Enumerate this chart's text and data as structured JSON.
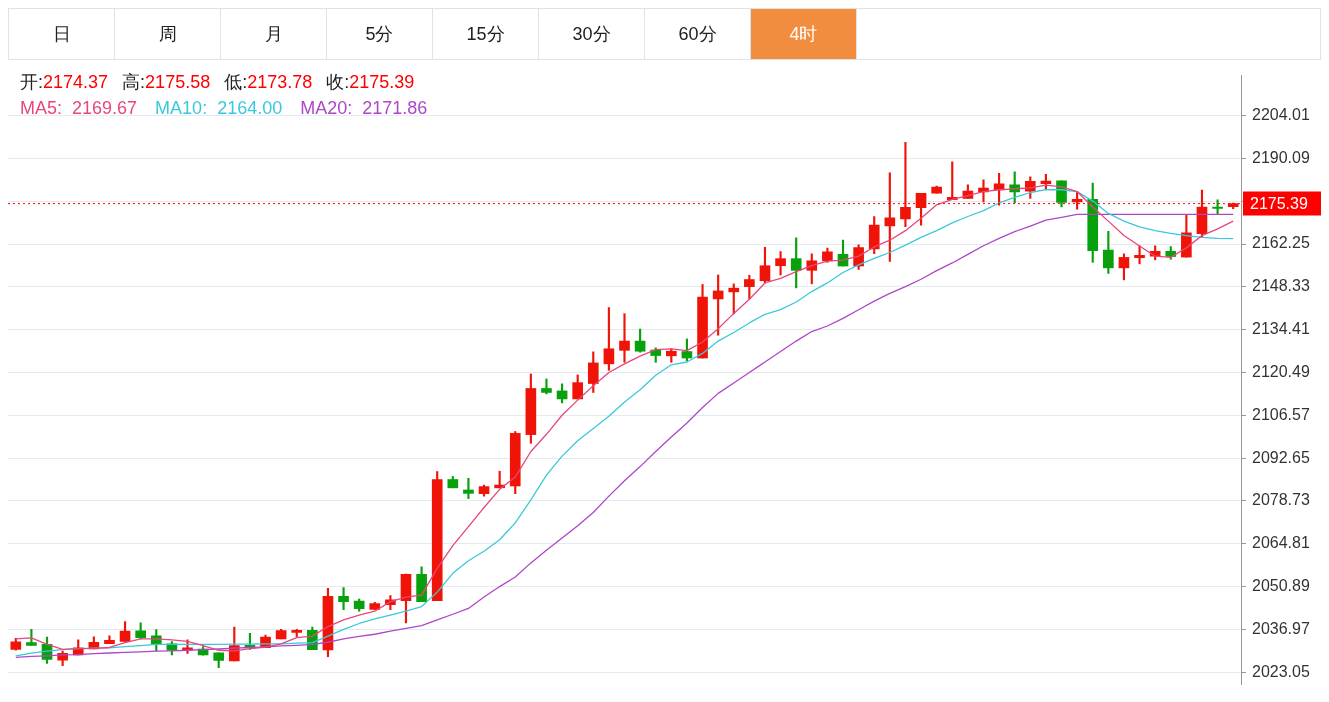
{
  "chart_data": {
    "type": "candlestick",
    "categories": [
      null,
      null,
      null,
      null,
      null,
      null,
      null,
      null,
      null,
      null,
      null,
      null,
      null,
      null,
      null,
      null,
      null,
      null,
      null,
      null,
      null,
      null,
      null,
      null,
      null,
      null,
      null,
      null,
      null,
      null,
      null,
      null,
      null,
      null,
      null,
      null,
      null,
      null,
      null,
      null,
      null,
      null,
      null,
      null,
      null,
      null,
      null,
      null,
      null,
      null,
      null,
      null,
      null,
      null,
      null,
      null,
      null,
      null,
      null,
      null,
      null,
      null,
      null,
      null,
      null,
      null,
      null,
      null,
      null,
      null,
      null,
      null,
      null,
      null,
      null,
      null,
      null,
      null,
      null
    ],
    "ohlc": [
      [
        2030.5,
        2034.1,
        2030.2,
        2032.9
      ],
      [
        2032.7,
        2037.0,
        2031.7,
        2031.8
      ],
      [
        2032.1,
        2034.5,
        2025.9,
        2027.2
      ],
      [
        2027.0,
        2029.9,
        2025.2,
        2029.2
      ],
      [
        2028.7,
        2033.6,
        2028.7,
        2031.0
      ],
      [
        2030.6,
        2034.6,
        2030.6,
        2032.8
      ],
      [
        2032.3,
        2034.9,
        2032.3,
        2033.4
      ],
      [
        2033.1,
        2039.5,
        2033.1,
        2036.4
      ],
      [
        2036.5,
        2039.1,
        2033.9,
        2034.3
      ],
      [
        2034.9,
        2036.9,
        2030.0,
        2032.1
      ],
      [
        2032.3,
        2033.0,
        2028.7,
        2030.2
      ],
      [
        2030.2,
        2033.6,
        2029.2,
        2031.0
      ],
      [
        2030.6,
        2031.4,
        2028.6,
        2028.7
      ],
      [
        2029.4,
        2029.4,
        2024.5,
        2026.9
      ],
      [
        2026.7,
        2037.7,
        2026.7,
        2031.7
      ],
      [
        2031.8,
        2035.7,
        2030.5,
        2031.2
      ],
      [
        2031.0,
        2035.1,
        2031.0,
        2034.5
      ],
      [
        2033.9,
        2037.0,
        2033.9,
        2036.6
      ],
      [
        2036.0,
        2037.0,
        2034.6,
        2036.7
      ],
      [
        2036.7,
        2037.7,
        2030.4,
        2030.4
      ],
      [
        2030.3,
        2050.3,
        2028.1,
        2047.7
      ],
      [
        2047.7,
        2050.6,
        2043.4,
        2046.0
      ],
      [
        2046.2,
        2046.8,
        2042.9,
        2043.7
      ],
      [
        2043.5,
        2045.8,
        2043.5,
        2045.4
      ],
      [
        2045.0,
        2048.0,
        2043.4,
        2046.6
      ],
      [
        2046.3,
        2055.0,
        2039.1,
        2054.9
      ],
      [
        2054.9,
        2057.3,
        2046.0,
        2046.0
      ],
      [
        2046.3,
        2088.3,
        2046.3,
        2085.7
      ],
      [
        2085.7,
        2086.7,
        2083.0,
        2083.0
      ],
      [
        2082.3,
        2086.1,
        2079.5,
        2081.2
      ],
      [
        2081.1,
        2083.9,
        2080.3,
        2083.4
      ],
      [
        2083.0,
        2088.4,
        2083.0,
        2083.9
      ],
      [
        2083.6,
        2101.3,
        2081.1,
        2100.7
      ],
      [
        2100.3,
        2120.0,
        2097.5,
        2115.3
      ],
      [
        2115.3,
        2118.4,
        2113.5,
        2114.0
      ],
      [
        2114.5,
        2116.8,
        2110.6,
        2111.9
      ],
      [
        2111.9,
        2119.7,
        2111.9,
        2117.2
      ],
      [
        2116.9,
        2127.2,
        2114.0,
        2123.6
      ],
      [
        2123.3,
        2141.6,
        2121.2,
        2128.2
      ],
      [
        2127.7,
        2139.6,
        2123.8,
        2130.7
      ],
      [
        2130.7,
        2134.6,
        2127.1,
        2127.4
      ],
      [
        2127.8,
        2128.5,
        2123.8,
        2126.0
      ],
      [
        2125.9,
        2128.2,
        2123.8,
        2127.4
      ],
      [
        2127.3,
        2131.4,
        2124.3,
        2125.2
      ],
      [
        2125.2,
        2149.1,
        2125.2,
        2145.0
      ],
      [
        2144.4,
        2152.2,
        2132.6,
        2147.0
      ],
      [
        2146.7,
        2149.3,
        2139.5,
        2147.9
      ],
      [
        2148.4,
        2152.1,
        2144.4,
        2150.7
      ],
      [
        2150.3,
        2161.2,
        2149.6,
        2155.2
      ],
      [
        2155.2,
        2159.8,
        2152.2,
        2157.5
      ],
      [
        2157.5,
        2164.3,
        2148.0,
        2153.7
      ],
      [
        2153.7,
        2159.1,
        2149.3,
        2156.8
      ],
      [
        2156.8,
        2160.9,
        2156.3,
        2159.7
      ],
      [
        2158.9,
        2163.5,
        2155.1,
        2155.1
      ],
      [
        2155.1,
        2162.0,
        2154.0,
        2161.1
      ],
      [
        2160.7,
        2171.2,
        2159.1,
        2168.4
      ],
      [
        2168.1,
        2185.4,
        2156.6,
        2170.8
      ],
      [
        2170.4,
        2195.3,
        2167.9,
        2174.2
      ],
      [
        2174.1,
        2178.7,
        2168.4,
        2178.7
      ],
      [
        2178.8,
        2181.1,
        2178.8,
        2180.8
      ],
      [
        2176.7,
        2189.0,
        2176.7,
        2177.4
      ],
      [
        2177.1,
        2181.5,
        2177.1,
        2179.5
      ],
      [
        2179.2,
        2183.1,
        2175.9,
        2180.4
      ],
      [
        2179.8,
        2185.2,
        2174.9,
        2181.8
      ],
      [
        2181.5,
        2185.7,
        2175.6,
        2179.2
      ],
      [
        2179.4,
        2184.1,
        2177.1,
        2182.6
      ],
      [
        2181.9,
        2184.9,
        2180.0,
        2182.7
      ],
      [
        2182.8,
        2182.8,
        2174.3,
        2175.8
      ],
      [
        2175.9,
        2179.2,
        2173.6,
        2176.8
      ],
      [
        2176.8,
        2182.1,
        2156.3,
        2160.1
      ],
      [
        2160.3,
        2166.4,
        2152.7,
        2154.5
      ],
      [
        2154.5,
        2159.1,
        2150.6,
        2157.9
      ],
      [
        2157.8,
        2161.7,
        2155.8,
        2158.6
      ],
      [
        2158.3,
        2161.7,
        2157.1,
        2159.9
      ],
      [
        2159.9,
        2161.4,
        2157.3,
        2158.2
      ],
      [
        2158.0,
        2171.6,
        2158.0,
        2165.9
      ],
      [
        2165.6,
        2179.8,
        2164.5,
        2174.3
      ],
      [
        2174.3,
        2176.6,
        2171.8,
        2173.8
      ],
      [
        2174.37,
        2175.58,
        2173.78,
        2175.39
      ]
    ],
    "colors": [
      "#f01408",
      "#06a10c",
      "#06a10c",
      "#f01408",
      "#f01408",
      "#f01408",
      "#f01408",
      "#f01408",
      "#06a10c",
      "#06a10c",
      "#06a10c",
      "#f01408",
      "#06a10c",
      "#06a10c",
      "#f01408",
      "#06a10c",
      "#f01408",
      "#f01408",
      "#f01408",
      "#06a10c",
      "#f01408",
      "#06a10c",
      "#06a10c",
      "#f01408",
      "#f01408",
      "#f01408",
      "#06a10c",
      "#f01408",
      "#06a10c",
      "#06a10c",
      "#f01408",
      "#f01408",
      "#f01408",
      "#f01408",
      "#06a10c",
      "#06a10c",
      "#f01408",
      "#f01408",
      "#f01408",
      "#f01408",
      "#06a10c",
      "#06a10c",
      "#f01408",
      "#06a10c",
      "#f01408",
      "#f01408",
      "#f01408",
      "#f01408",
      "#f01408",
      "#f01408",
      "#06a10c",
      "#f01408",
      "#f01408",
      "#06a10c",
      "#f01408",
      "#f01408",
      "#f01408",
      "#f01408",
      "#f01408",
      "#f01408",
      "#f01408",
      "#f01408",
      "#f01408",
      "#f01408",
      "#06a10c",
      "#f01408",
      "#f01408",
      "#06a10c",
      "#f01408",
      "#06a10c",
      "#06a10c",
      "#f01408",
      "#f01408",
      "#f01408",
      "#06a10c",
      "#f01408",
      "#f01408",
      "#06a10c",
      "#f01408"
    ],
    "series": [
      {
        "name": "MA5:",
        "type": "line",
        "color": "#e8467c",
        "values": [
          2033.9,
          2034.2,
          2032.1,
          2030.5,
          2030.7,
          2030.8,
          2031.1,
          2032.7,
          2033.9,
          2033.9,
          2033.6,
          2033.1,
          2031.7,
          2030.2,
          2030.0,
          2030.7,
          2031.2,
          2032.3,
          2034.3,
          2034.8,
          2037.9,
          2040.1,
          2041.6,
          2042.9,
          2046.0,
          2047.5,
          2048.1,
          2056.8,
          2064.2,
          2070.4,
          2076.6,
          2082.5,
          2086.5,
          2094.8,
          2100.4,
          2106.6,
          2111.5,
          2116.2,
          2120.5,
          2123.3,
          2125.8,
          2127.9,
          2128.2,
          2127.6,
          2130.4,
          2134.7,
          2139.7,
          2144.3,
          2149.6,
          2151.1,
          2153.3,
          2155.2,
          2156.7,
          2157.0,
          2158.3,
          2161.3,
          2163.5,
          2166.6,
          2170.6,
          2175.0,
          2176.8,
          2178.0,
          2179.3,
          2179.9,
          2180.2,
          2180.5,
          2181.4,
          2180.8,
          2179.3,
          2174.3,
          2169.7,
          2165.0,
          2161.6,
          2158.3,
          2157.9,
          2161.0,
          2165.0,
          2167.2,
          2169.7
        ]
      },
      {
        "name": "MA10:",
        "type": "line",
        "color": "#3cc8dc",
        "values": [
          2028.4,
          2029.3,
          2029.9,
          2030.4,
          2030.7,
          2030.9,
          2031.0,
          2031.4,
          2031.7,
          2032.1,
          2032.1,
          2032.1,
          2032.1,
          2032.1,
          2032.2,
          2032.2,
          2032.3,
          2032.3,
          2032.5,
          2032.7,
          2034.8,
          2037.0,
          2038.9,
          2040.4,
          2041.6,
          2042.9,
          2044.4,
          2049.1,
          2055.2,
          2059.3,
          2062.4,
          2066.1,
          2071.6,
          2079.1,
          2087.1,
          2093.3,
          2098.3,
          2102.3,
          2106.3,
          2110.9,
          2114.9,
          2119.6,
          2123.0,
          2123.9,
          2126.7,
          2130.7,
          2133.5,
          2136.6,
          2139.4,
          2140.9,
          2143.4,
          2146.8,
          2149.6,
          2153.0,
          2155.5,
          2157.6,
          2159.5,
          2161.9,
          2164.4,
          2166.6,
          2169.1,
          2171.2,
          2173.1,
          2175.6,
          2177.4,
          2179.0,
          2179.9,
          2179.9,
          2179.3,
          2176.2,
          2172.2,
          2169.7,
          2167.8,
          2166.6,
          2165.7,
          2165.0,
          2164.4,
          2164.1,
          2164.0
        ]
      },
      {
        "name": "MA20:",
        "type": "line",
        "color": "#ad47c8",
        "values": [
          2027.9,
          2028.2,
          2028.4,
          2028.7,
          2028.8,
          2029.1,
          2029.3,
          2029.5,
          2029.7,
          2029.9,
          2030.0,
          2030.2,
          2030.4,
          2030.6,
          2030.9,
          2031.1,
          2031.3,
          2031.6,
          2031.8,
          2032.1,
          2032.8,
          2033.9,
          2034.7,
          2035.4,
          2036.4,
          2037.3,
          2038.2,
          2040.1,
          2041.9,
          2043.8,
          2047.5,
          2050.9,
          2054.0,
          2058.6,
          2062.7,
          2066.7,
          2070.7,
          2075.0,
          2080.3,
          2085.3,
          2089.9,
          2094.8,
          2099.5,
          2104.1,
          2109.1,
          2113.7,
          2117.1,
          2120.5,
          2123.9,
          2127.3,
          2130.7,
          2133.8,
          2135.6,
          2138.1,
          2140.9,
          2143.7,
          2146.2,
          2148.4,
          2150.8,
          2153.6,
          2156.1,
          2158.9,
          2161.7,
          2164.1,
          2166.3,
          2168.1,
          2170.0,
          2170.9,
          2171.9,
          2171.9,
          2171.9,
          2171.9,
          2171.9,
          2171.9,
          2171.9,
          2171.9,
          2171.9,
          2171.9,
          2171.9
        ]
      }
    ],
    "ylim": [
      2019.1,
      2217.0
    ],
    "yticks": [
      2023.05,
      2036.97,
      2050.89,
      2064.81,
      2078.73,
      2092.65,
      2106.57,
      2120.49,
      2134.41,
      2148.33,
      2162.25,
      {
        "value": 2176.17,
        "label": null
      },
      2190.09,
      2204.01
    ],
    "grid": "y",
    "legend": "top left",
    "tick_labels": "y",
    "ref_lines": [
      {
        "axis": "y",
        "value": 2175.39,
        "label": "2175.39",
        "color": "#ff0000",
        "line_style": "dotted"
      }
    ],
    "annotations": [
      "日",
      "周",
      "月",
      "5分",
      "15分",
      "30分",
      "60分",
      "4时",
      "开:",
      "2174.37",
      "高:",
      "2175.58",
      "低:",
      "2173.78",
      "收:",
      "2175.39",
      "2169.67",
      "2164.00",
      "2171.86"
    ]
  }
}
